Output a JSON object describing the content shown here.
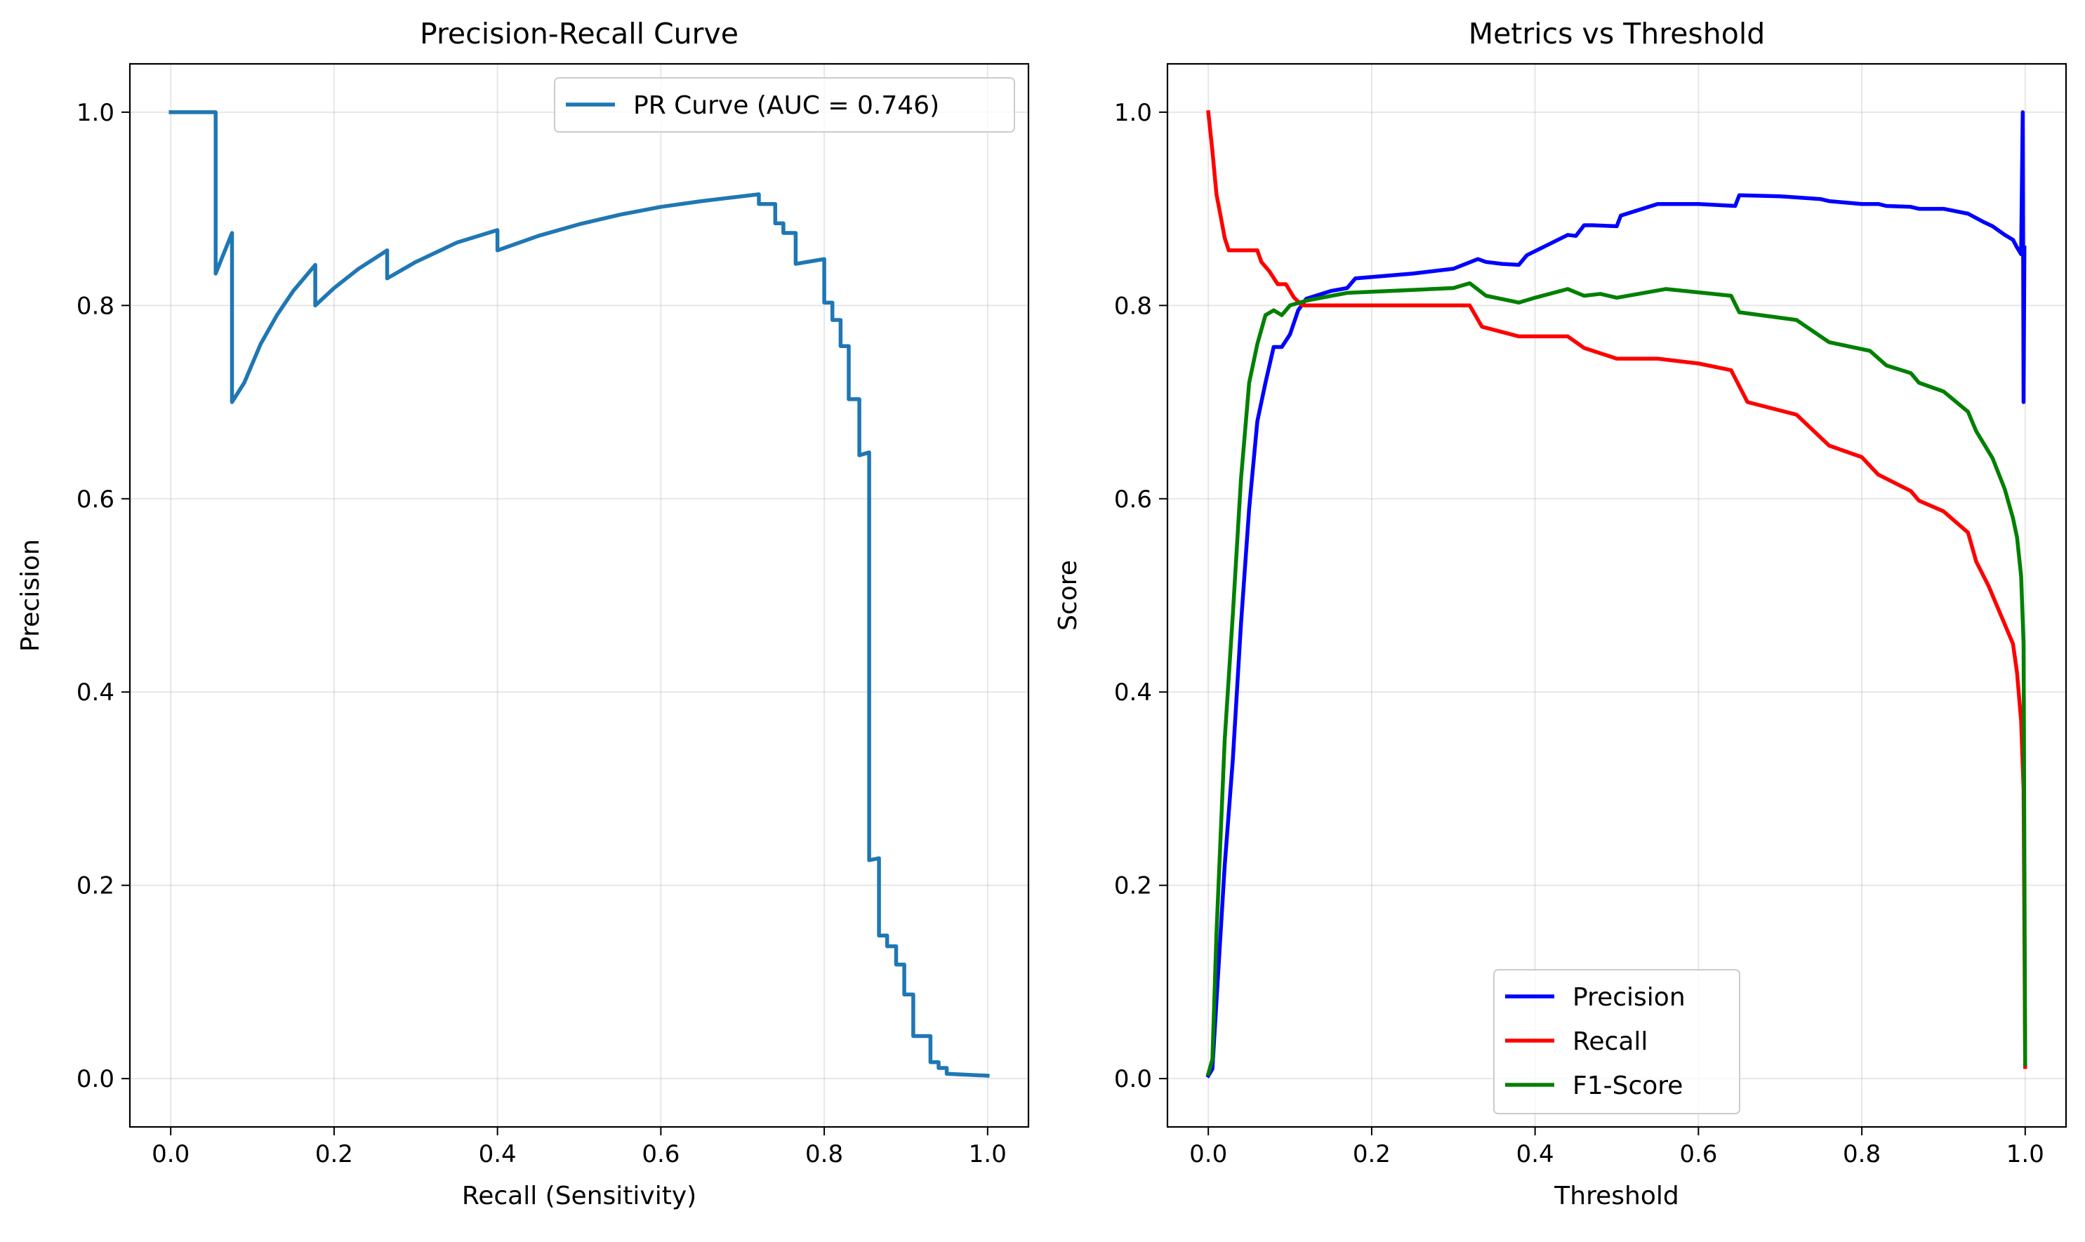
{
  "chart_data": [
    {
      "type": "line",
      "title": "Precision-Recall Curve",
      "xlabel": "Recall (Sensitivity)",
      "ylabel": "Precision",
      "xlim": [
        -0.05,
        1.05
      ],
      "ylim": [
        -0.05,
        1.05
      ],
      "xticks": [
        "0.0",
        "0.2",
        "0.4",
        "0.6",
        "0.8",
        "1.0"
      ],
      "yticks": [
        "0.0",
        "0.2",
        "0.4",
        "0.6",
        "0.8",
        "1.0"
      ],
      "grid": true,
      "legend_position": "top-right",
      "series": [
        {
          "name": "PR Curve (AUC = 0.746)",
          "color": "#1f77b4",
          "points": [
            [
              0.0,
              1.0
            ],
            [
              0.055,
              1.0
            ],
            [
              0.055,
              0.833
            ],
            [
              0.075,
              0.875
            ],
            [
              0.075,
              0.7
            ],
            [
              0.09,
              0.72
            ],
            [
              0.11,
              0.76
            ],
            [
              0.13,
              0.79
            ],
            [
              0.15,
              0.815
            ],
            [
              0.177,
              0.842
            ],
            [
              0.177,
              0.8
            ],
            [
              0.2,
              0.818
            ],
            [
              0.23,
              0.838
            ],
            [
              0.265,
              0.857
            ],
            [
              0.265,
              0.828
            ],
            [
              0.3,
              0.845
            ],
            [
              0.35,
              0.865
            ],
            [
              0.4,
              0.878
            ],
            [
              0.4,
              0.857
            ],
            [
              0.45,
              0.872
            ],
            [
              0.5,
              0.884
            ],
            [
              0.55,
              0.894
            ],
            [
              0.6,
              0.902
            ],
            [
              0.65,
              0.908
            ],
            [
              0.72,
              0.915
            ],
            [
              0.72,
              0.905
            ],
            [
              0.74,
              0.905
            ],
            [
              0.74,
              0.885
            ],
            [
              0.75,
              0.885
            ],
            [
              0.75,
              0.875
            ],
            [
              0.765,
              0.875
            ],
            [
              0.765,
              0.843
            ],
            [
              0.8,
              0.848
            ],
            [
              0.8,
              0.803
            ],
            [
              0.81,
              0.803
            ],
            [
              0.81,
              0.785
            ],
            [
              0.82,
              0.785
            ],
            [
              0.82,
              0.758
            ],
            [
              0.83,
              0.758
            ],
            [
              0.83,
              0.703
            ],
            [
              0.843,
              0.703
            ],
            [
              0.843,
              0.645
            ],
            [
              0.855,
              0.648
            ],
            [
              0.855,
              0.226
            ],
            [
              0.867,
              0.228
            ],
            [
              0.867,
              0.148
            ],
            [
              0.877,
              0.148
            ],
            [
              0.877,
              0.137
            ],
            [
              0.888,
              0.137
            ],
            [
              0.888,
              0.118
            ],
            [
              0.898,
              0.118
            ],
            [
              0.898,
              0.087
            ],
            [
              0.909,
              0.087
            ],
            [
              0.909,
              0.044
            ],
            [
              0.93,
              0.044
            ],
            [
              0.93,
              0.017
            ],
            [
              0.94,
              0.017
            ],
            [
              0.94,
              0.011
            ],
            [
              0.95,
              0.011
            ],
            [
              0.95,
              0.005
            ],
            [
              1.0,
              0.003
            ]
          ]
        }
      ]
    },
    {
      "type": "line",
      "title": "Metrics vs Threshold",
      "xlabel": "Threshold",
      "ylabel": "Score",
      "xlim": [
        -0.05,
        1.05
      ],
      "ylim": [
        -0.05,
        1.05
      ],
      "xticks": [
        "0.0",
        "0.2",
        "0.4",
        "0.6",
        "0.8",
        "1.0"
      ],
      "yticks": [
        "0.0",
        "0.2",
        "0.4",
        "0.6",
        "0.8",
        "1.0"
      ],
      "grid": true,
      "legend_position": "bottom-center",
      "series": [
        {
          "name": "Precision",
          "color": "#0000ff",
          "points": [
            [
              0.0,
              0.003
            ],
            [
              0.005,
              0.01
            ],
            [
              0.01,
              0.08
            ],
            [
              0.02,
              0.22
            ],
            [
              0.03,
              0.33
            ],
            [
              0.04,
              0.47
            ],
            [
              0.05,
              0.59
            ],
            [
              0.06,
              0.68
            ],
            [
              0.07,
              0.72
            ],
            [
              0.08,
              0.757
            ],
            [
              0.09,
              0.757
            ],
            [
              0.1,
              0.77
            ],
            [
              0.11,
              0.795
            ],
            [
              0.12,
              0.807
            ],
            [
              0.15,
              0.815
            ],
            [
              0.17,
              0.818
            ],
            [
              0.18,
              0.828
            ],
            [
              0.25,
              0.833
            ],
            [
              0.3,
              0.838
            ],
            [
              0.33,
              0.848
            ],
            [
              0.34,
              0.845
            ],
            [
              0.36,
              0.843
            ],
            [
              0.38,
              0.842
            ],
            [
              0.39,
              0.852
            ],
            [
              0.44,
              0.873
            ],
            [
              0.45,
              0.872
            ],
            [
              0.46,
              0.883
            ],
            [
              0.47,
              0.883
            ],
            [
              0.5,
              0.882
            ],
            [
              0.505,
              0.893
            ],
            [
              0.55,
              0.905
            ],
            [
              0.6,
              0.905
            ],
            [
              0.645,
              0.903
            ],
            [
              0.65,
              0.914
            ],
            [
              0.7,
              0.913
            ],
            [
              0.75,
              0.91
            ],
            [
              0.76,
              0.908
            ],
            [
              0.8,
              0.905
            ],
            [
              0.82,
              0.905
            ],
            [
              0.83,
              0.903
            ],
            [
              0.86,
              0.902
            ],
            [
              0.87,
              0.9
            ],
            [
              0.9,
              0.9
            ],
            [
              0.93,
              0.895
            ],
            [
              0.95,
              0.886
            ],
            [
              0.96,
              0.882
            ],
            [
              0.975,
              0.873
            ],
            [
              0.985,
              0.868
            ],
            [
              0.99,
              0.86
            ],
            [
              0.995,
              0.853
            ],
            [
              0.997,
              1.0
            ],
            [
              0.998,
              0.7
            ],
            [
              0.999,
              0.86
            ]
          ]
        },
        {
          "name": "Recall",
          "color": "#ff0000",
          "points": [
            [
              0.0,
              1.0
            ],
            [
              0.005,
              0.96
            ],
            [
              0.01,
              0.915
            ],
            [
              0.015,
              0.893
            ],
            [
              0.02,
              0.87
            ],
            [
              0.025,
              0.857
            ],
            [
              0.06,
              0.857
            ],
            [
              0.065,
              0.845
            ],
            [
              0.075,
              0.835
            ],
            [
              0.085,
              0.822
            ],
            [
              0.095,
              0.822
            ],
            [
              0.105,
              0.808
            ],
            [
              0.115,
              0.8
            ],
            [
              0.32,
              0.8
            ],
            [
              0.335,
              0.778
            ],
            [
              0.38,
              0.768
            ],
            [
              0.44,
              0.768
            ],
            [
              0.46,
              0.756
            ],
            [
              0.5,
              0.745
            ],
            [
              0.55,
              0.745
            ],
            [
              0.6,
              0.74
            ],
            [
              0.64,
              0.733
            ],
            [
              0.66,
              0.7
            ],
            [
              0.72,
              0.687
            ],
            [
              0.76,
              0.655
            ],
            [
              0.8,
              0.643
            ],
            [
              0.82,
              0.625
            ],
            [
              0.86,
              0.608
            ],
            [
              0.87,
              0.598
            ],
            [
              0.9,
              0.587
            ],
            [
              0.93,
              0.565
            ],
            [
              0.94,
              0.535
            ],
            [
              0.955,
              0.51
            ],
            [
              0.97,
              0.48
            ],
            [
              0.985,
              0.45
            ],
            [
              0.99,
              0.42
            ],
            [
              0.995,
              0.37
            ],
            [
              0.998,
              0.3
            ],
            [
              1.0,
              0.012
            ]
          ]
        },
        {
          "name": "F1-Score",
          "color": "#008000",
          "points": [
            [
              0.0,
              0.005
            ],
            [
              0.005,
              0.02
            ],
            [
              0.01,
              0.15
            ],
            [
              0.02,
              0.35
            ],
            [
              0.03,
              0.48
            ],
            [
              0.04,
              0.62
            ],
            [
              0.05,
              0.72
            ],
            [
              0.06,
              0.76
            ],
            [
              0.07,
              0.79
            ],
            [
              0.08,
              0.795
            ],
            [
              0.09,
              0.79
            ],
            [
              0.1,
              0.8
            ],
            [
              0.12,
              0.805
            ],
            [
              0.17,
              0.813
            ],
            [
              0.3,
              0.818
            ],
            [
              0.32,
              0.823
            ],
            [
              0.34,
              0.81
            ],
            [
              0.38,
              0.803
            ],
            [
              0.4,
              0.808
            ],
            [
              0.44,
              0.817
            ],
            [
              0.46,
              0.81
            ],
            [
              0.48,
              0.812
            ],
            [
              0.5,
              0.808
            ],
            [
              0.56,
              0.817
            ],
            [
              0.64,
              0.81
            ],
            [
              0.65,
              0.793
            ],
            [
              0.72,
              0.785
            ],
            [
              0.76,
              0.762
            ],
            [
              0.81,
              0.753
            ],
            [
              0.83,
              0.738
            ],
            [
              0.86,
              0.73
            ],
            [
              0.87,
              0.72
            ],
            [
              0.9,
              0.711
            ],
            [
              0.93,
              0.69
            ],
            [
              0.94,
              0.67
            ],
            [
              0.96,
              0.642
            ],
            [
              0.975,
              0.61
            ],
            [
              0.985,
              0.58
            ],
            [
              0.99,
              0.56
            ],
            [
              0.995,
              0.52
            ],
            [
              0.998,
              0.45
            ],
            [
              1.0,
              0.015
            ]
          ]
        }
      ]
    }
  ]
}
